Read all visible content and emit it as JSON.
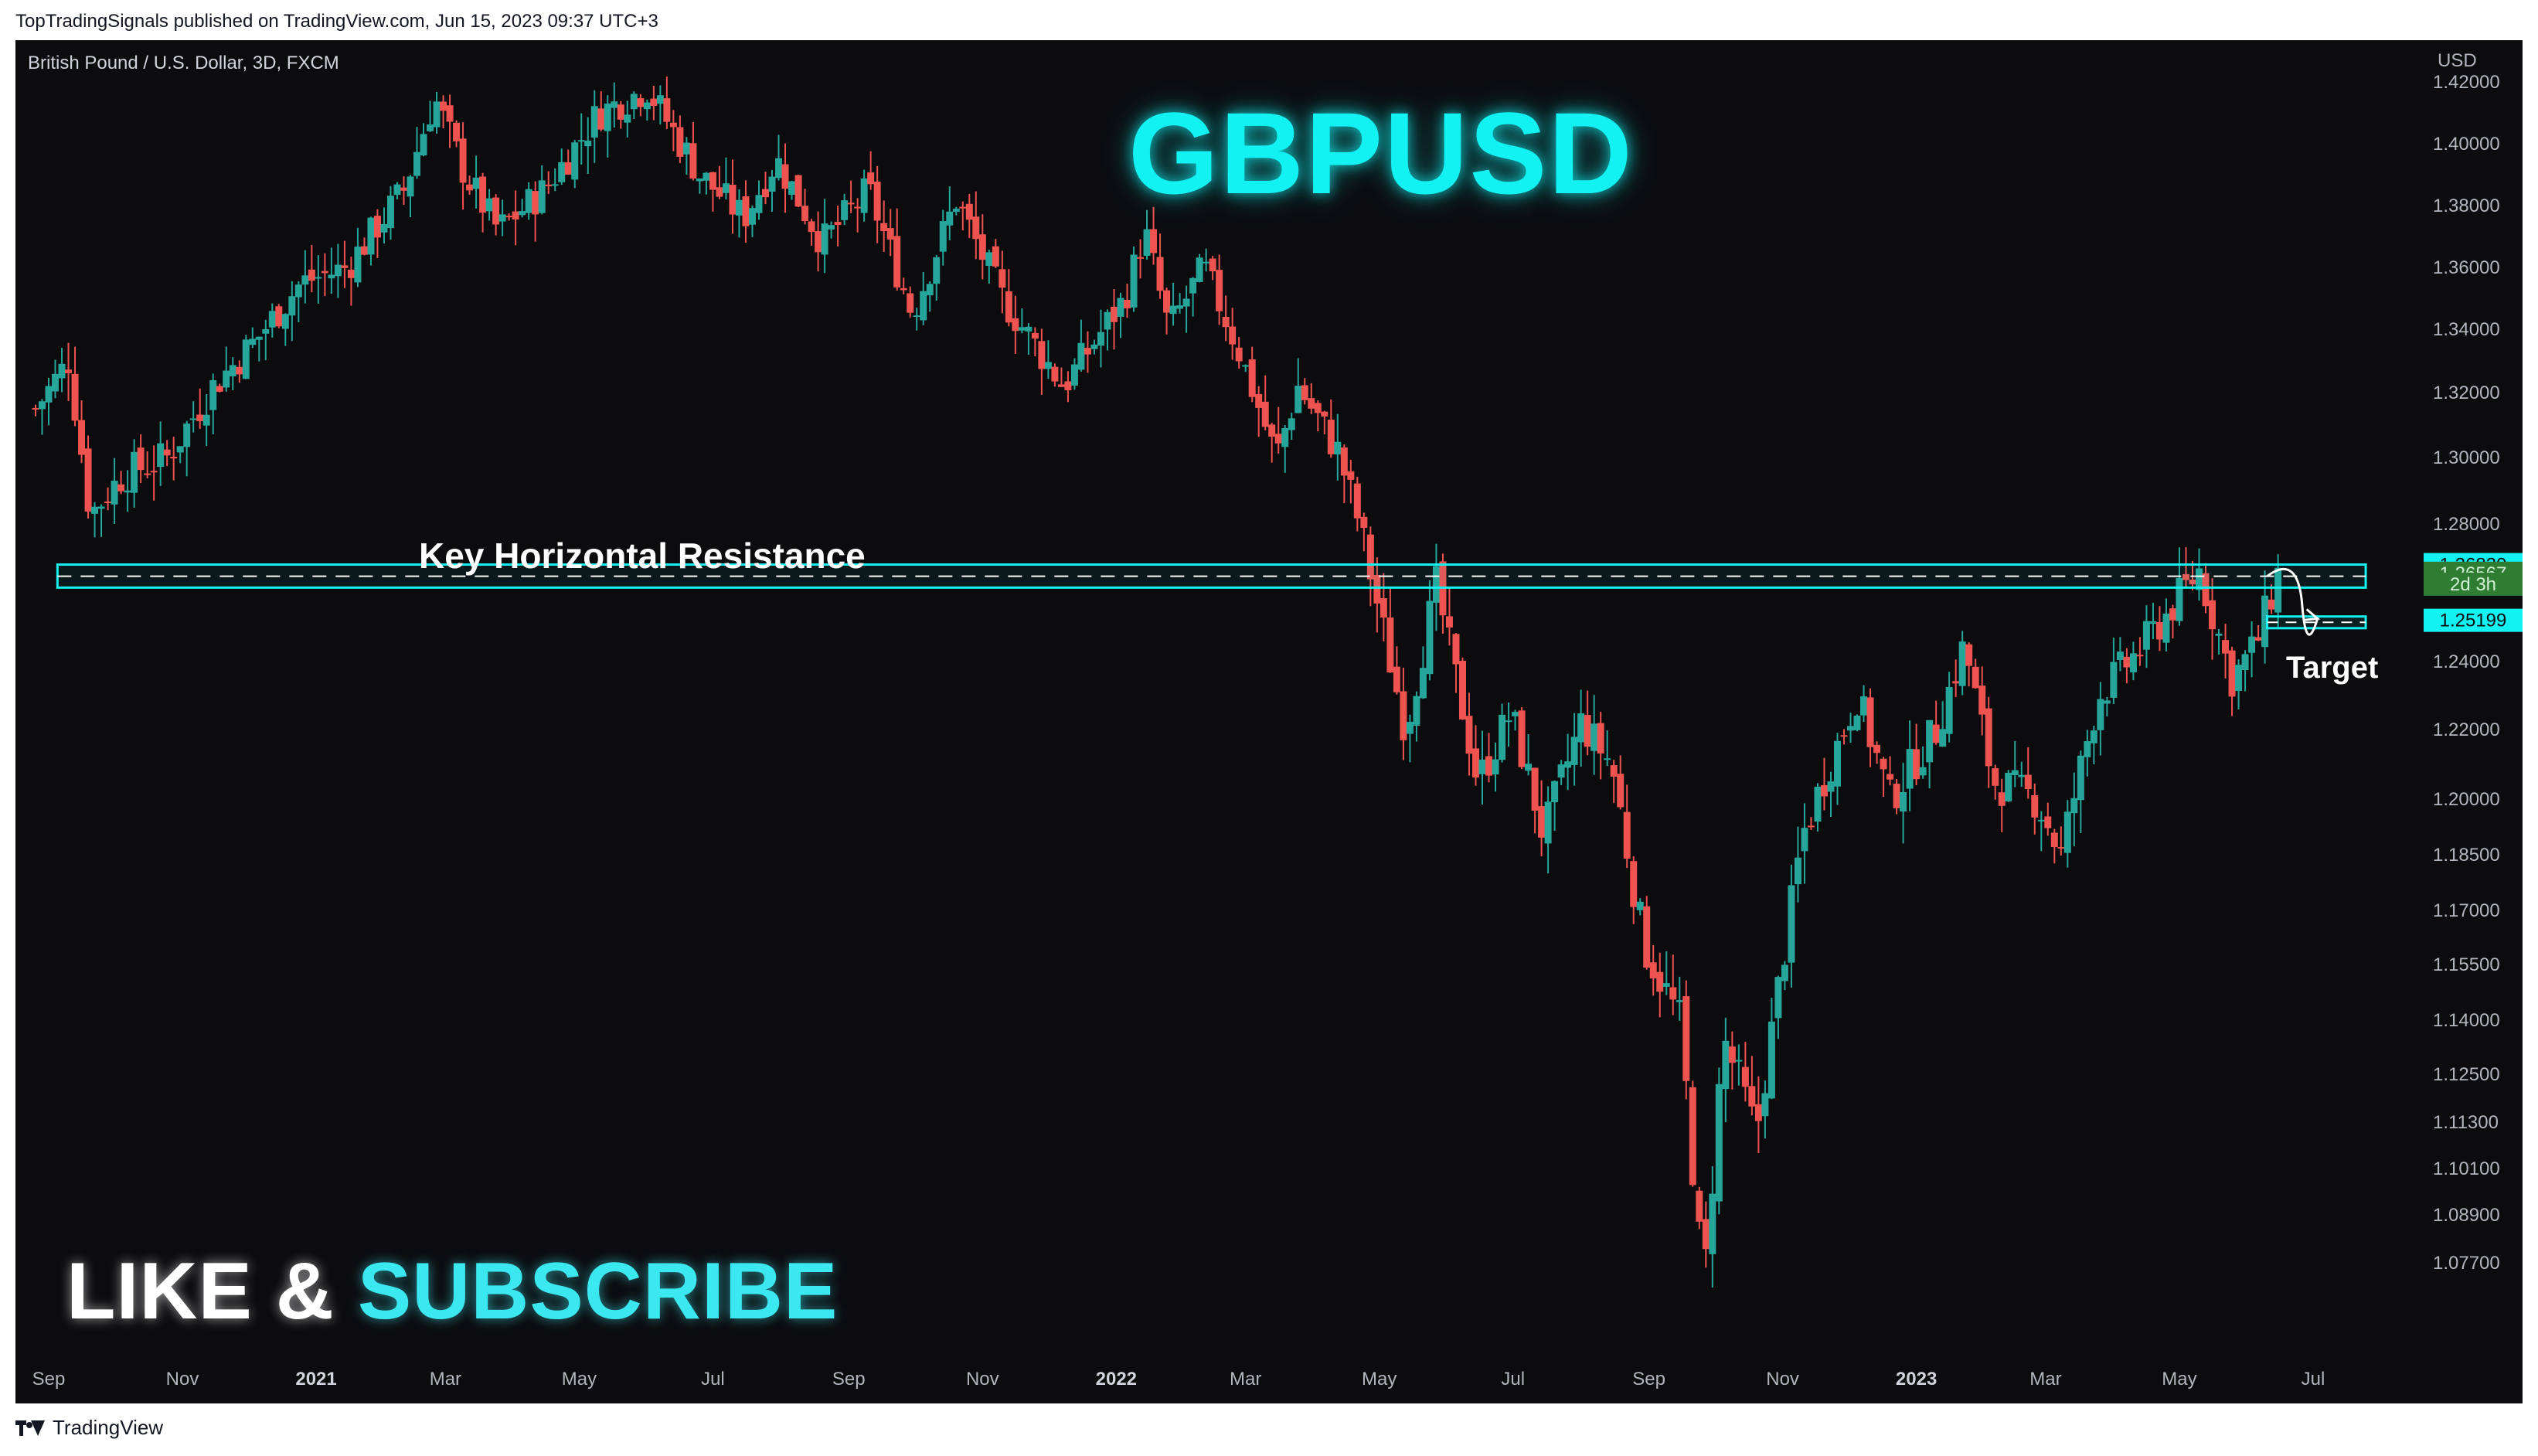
{
  "header": {
    "publisher": "TopTradingSignals published on TradingView.com, Jun 15, 2023 09:37 UTC+3"
  },
  "footer": {
    "brand": "TradingView",
    "logo_icon": "tradingview-logo-icon"
  },
  "overlay": {
    "title": "GBPUSD",
    "cta_like": "LIKE &",
    "cta_subscribe": "SUBSCRIBE",
    "resistance_label": "Key Horizontal Resistance",
    "target_label": "Target"
  },
  "colors": {
    "background": "#0c0c0f",
    "up": "#26a69a",
    "down": "#ef5350",
    "accent": "#13f2f2",
    "axis_text": "#b2b5be"
  },
  "chart_data": {
    "type": "candlestick",
    "symbol": "British Pound / U.S. Dollar, 3D, FXCM",
    "currency": "USD",
    "y_ticks": [
      1.42,
      1.4,
      1.38,
      1.36,
      1.34,
      1.32,
      1.3,
      1.28,
      1.24,
      1.22,
      1.2,
      1.185,
      1.17,
      1.155,
      1.14,
      1.125,
      1.113,
      1.101,
      1.089,
      1.077
    ],
    "y_tick_labels": [
      "1.42000",
      "1.40000",
      "1.38000",
      "1.36000",
      "1.34000",
      "1.32000",
      "1.30000",
      "1.28000",
      "1.24000",
      "1.22000",
      "1.20000",
      "1.18500",
      "1.17000",
      "1.15500",
      "1.14000",
      "1.12500",
      "1.11300",
      "1.10100",
      "1.08900",
      "1.07700"
    ],
    "x_ticks": [
      {
        "label": "Sep",
        "date": "2020-09-01",
        "year": false
      },
      {
        "label": "Nov",
        "date": "2020-11-01",
        "year": false
      },
      {
        "label": "2021",
        "date": "2021-01-01",
        "year": true
      },
      {
        "label": "Mar",
        "date": "2021-03-01",
        "year": false
      },
      {
        "label": "May",
        "date": "2021-05-01",
        "year": false
      },
      {
        "label": "Jul",
        "date": "2021-07-01",
        "year": false
      },
      {
        "label": "Sep",
        "date": "2021-09-01",
        "year": false
      },
      {
        "label": "Nov",
        "date": "2021-11-01",
        "year": false
      },
      {
        "label": "2022",
        "date": "2022-01-01",
        "year": true
      },
      {
        "label": "Mar",
        "date": "2022-03-01",
        "year": false
      },
      {
        "label": "May",
        "date": "2022-05-01",
        "year": false
      },
      {
        "label": "Jul",
        "date": "2022-07-01",
        "year": false
      },
      {
        "label": "Sep",
        "date": "2022-09-01",
        "year": false
      },
      {
        "label": "Nov",
        "date": "2022-11-01",
        "year": false
      },
      {
        "label": "2023",
        "date": "2023-01-01",
        "year": true
      },
      {
        "label": "Mar",
        "date": "2023-03-01",
        "year": false
      },
      {
        "label": "May",
        "date": "2023-05-01",
        "year": false
      },
      {
        "label": "Jul",
        "date": "2023-07-01",
        "year": false
      }
    ],
    "price_markers": [
      {
        "label": "1.26820",
        "value": 1.2682,
        "style": "cyan"
      },
      {
        "label": "1.26567",
        "value": 1.26567,
        "style": "green"
      },
      {
        "label": "2d 3h",
        "value": 1.2625,
        "style": "green"
      },
      {
        "label": "1.25199",
        "value": 1.25199,
        "style": "cyan"
      }
    ],
    "resistance_zone": {
      "from_date": "2020-09-05",
      "to_date": "2023-07-25",
      "low": 1.2615,
      "high": 1.2682,
      "mid": 1.2648
    },
    "target_zone": {
      "from_date": "2023-06-10",
      "to_date": "2023-07-25",
      "low": 1.2497,
      "high": 1.2531,
      "mid": 1.2514
    },
    "forecast_path": [
      {
        "date": "2023-06-10",
        "price": 1.2648
      },
      {
        "date": "2023-06-26",
        "price": 1.2565
      },
      {
        "date": "2023-07-03",
        "price": 1.2525
      }
    ],
    "price_path": [
      {
        "date": "2020-08-26",
        "price": 1.315
      },
      {
        "date": "2020-09-10",
        "price": 1.33
      },
      {
        "date": "2020-09-20",
        "price": 1.283
      },
      {
        "date": "2020-10-05",
        "price": 1.295
      },
      {
        "date": "2020-10-25",
        "price": 1.3
      },
      {
        "date": "2020-11-15",
        "price": 1.322
      },
      {
        "date": "2020-12-05",
        "price": 1.337
      },
      {
        "date": "2020-12-25",
        "price": 1.355
      },
      {
        "date": "2021-01-15",
        "price": 1.36
      },
      {
        "date": "2021-02-10",
        "price": 1.385
      },
      {
        "date": "2021-02-24",
        "price": 1.415
      },
      {
        "date": "2021-03-10",
        "price": 1.39
      },
      {
        "date": "2021-03-25",
        "price": 1.372
      },
      {
        "date": "2021-04-15",
        "price": 1.385
      },
      {
        "date": "2021-05-10",
        "price": 1.41
      },
      {
        "date": "2021-06-01",
        "price": 1.418
      },
      {
        "date": "2021-06-25",
        "price": 1.39
      },
      {
        "date": "2021-07-15",
        "price": 1.376
      },
      {
        "date": "2021-07-30",
        "price": 1.395
      },
      {
        "date": "2021-08-20",
        "price": 1.368
      },
      {
        "date": "2021-09-10",
        "price": 1.385
      },
      {
        "date": "2021-09-30",
        "price": 1.345
      },
      {
        "date": "2021-10-20",
        "price": 1.382
      },
      {
        "date": "2021-11-10",
        "price": 1.35
      },
      {
        "date": "2021-12-08",
        "price": 1.322
      },
      {
        "date": "2022-01-05",
        "price": 1.35
      },
      {
        "date": "2022-01-14",
        "price": 1.372
      },
      {
        "date": "2022-01-25",
        "price": 1.34
      },
      {
        "date": "2022-02-10",
        "price": 1.36
      },
      {
        "date": "2022-02-25",
        "price": 1.335
      },
      {
        "date": "2022-03-15",
        "price": 1.3
      },
      {
        "date": "2022-03-25",
        "price": 1.322
      },
      {
        "date": "2022-04-12",
        "price": 1.302
      },
      {
        "date": "2022-04-22",
        "price": 1.28
      },
      {
        "date": "2022-05-13",
        "price": 1.22
      },
      {
        "date": "2022-05-27",
        "price": 1.262
      },
      {
        "date": "2022-06-15",
        "price": 1.205
      },
      {
        "date": "2022-06-30",
        "price": 1.225
      },
      {
        "date": "2022-07-15",
        "price": 1.19
      },
      {
        "date": "2022-08-01",
        "price": 1.222
      },
      {
        "date": "2022-08-15",
        "price": 1.21
      },
      {
        "date": "2022-08-30",
        "price": 1.16
      },
      {
        "date": "2022-09-15",
        "price": 1.14
      },
      {
        "date": "2022-09-26",
        "price": 1.07
      },
      {
        "date": "2022-10-05",
        "price": 1.135
      },
      {
        "date": "2022-10-20",
        "price": 1.11
      },
      {
        "date": "2022-11-10",
        "price": 1.19
      },
      {
        "date": "2022-12-05",
        "price": 1.23
      },
      {
        "date": "2022-12-20",
        "price": 1.2
      },
      {
        "date": "2023-01-10",
        "price": 1.22
      },
      {
        "date": "2023-01-23",
        "price": 1.245
      },
      {
        "date": "2023-02-05",
        "price": 1.205
      },
      {
        "date": "2023-02-25",
        "price": 1.2
      },
      {
        "date": "2023-03-08",
        "price": 1.185
      },
      {
        "date": "2023-03-25",
        "price": 1.23
      },
      {
        "date": "2023-04-15",
        "price": 1.245
      },
      {
        "date": "2023-05-10",
        "price": 1.2665
      },
      {
        "date": "2023-05-25",
        "price": 1.235
      },
      {
        "date": "2023-06-05",
        "price": 1.245
      },
      {
        "date": "2023-06-15",
        "price": 1.2656
      }
    ],
    "candle_interval_days": 3,
    "candle_seed": 7
  }
}
